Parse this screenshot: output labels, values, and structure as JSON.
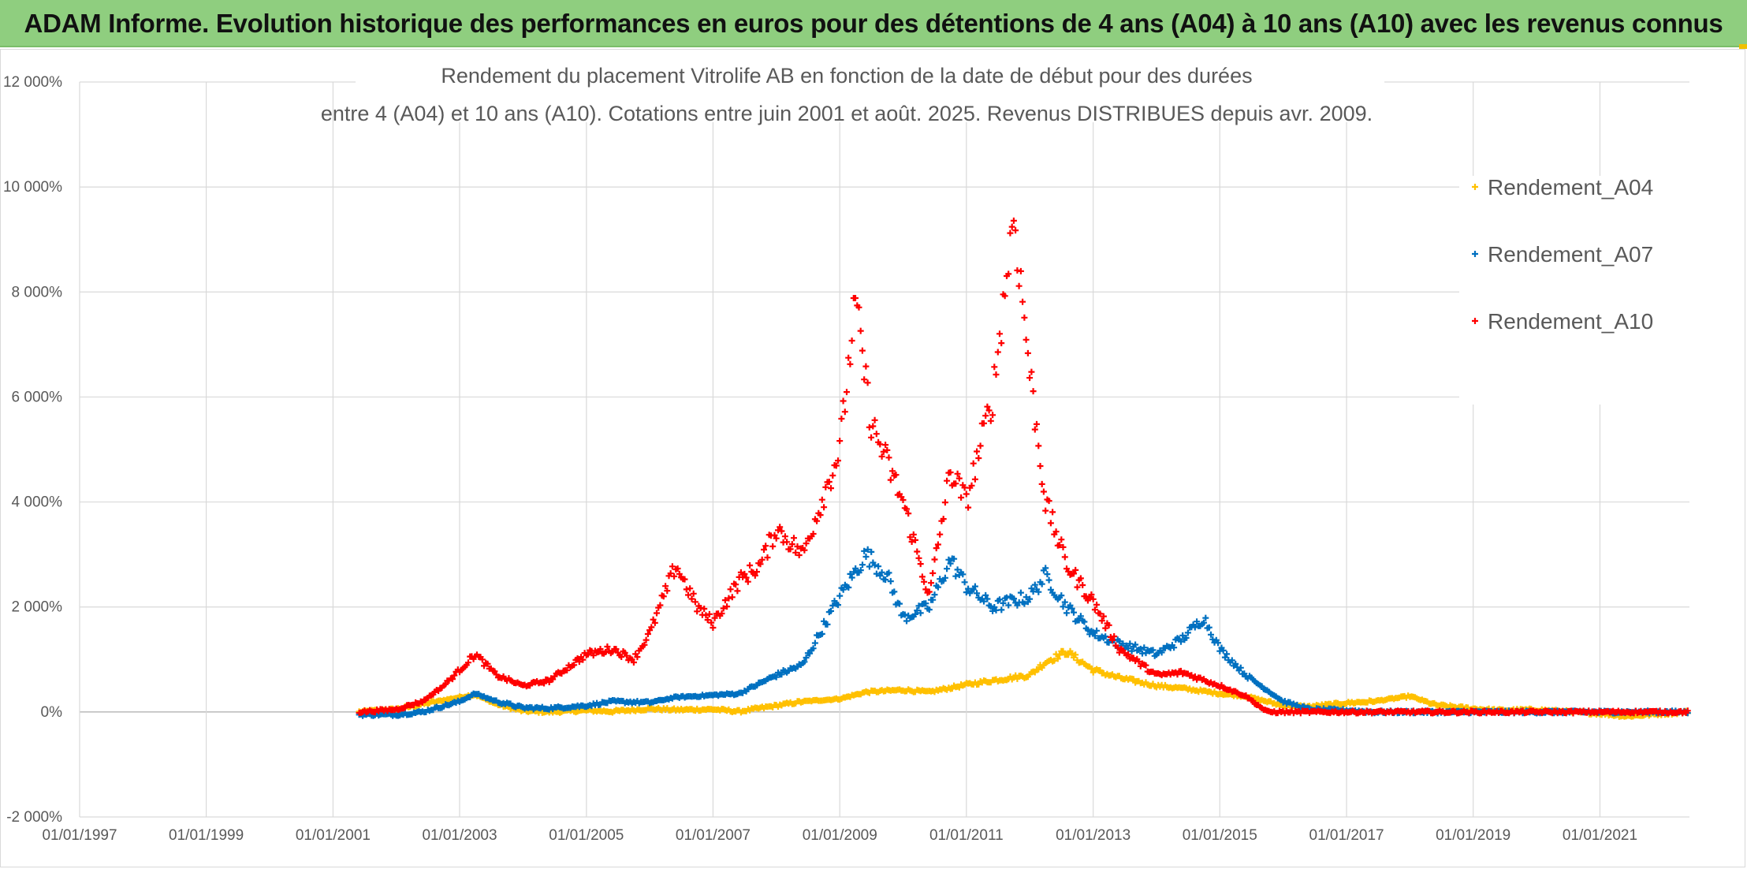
{
  "header": {
    "title": "ADAM Informe. Evolution historique des performances en euros pour des détentions de 4 ans (A04) à 10 ans (A10) avec les revenus connus distribués",
    "background": "#8fce7f"
  },
  "chart_data": {
    "type": "scatter",
    "title_lines": [
      "Rendement du placement Vitrolife AB en fonction de la date de début pour des durées",
      "entre 4 (A04) et 10 ans (A10). Cotations entre juin 2001 et août. 2025. Revenus DISTRIBUES depuis avr. 2009."
    ],
    "xlabel": "",
    "ylabel": "",
    "xlim": [
      "1997-01-01",
      "2022-06-01"
    ],
    "x_ticks": [
      "01/01/1997",
      "01/01/1999",
      "01/01/2001",
      "01/01/2003",
      "01/01/2005",
      "01/01/2007",
      "01/01/2009",
      "01/01/2011",
      "01/01/2013",
      "01/01/2015",
      "01/01/2017",
      "01/01/2019",
      "01/01/2021"
    ],
    "ylim": [
      -2000,
      12000
    ],
    "y_unit": "%",
    "y_ticks": [
      "-2 000%",
      "0%",
      "2 000%",
      "4 000%",
      "6 000%",
      "8 000%",
      "10 000%",
      "12 000%"
    ],
    "grid": true,
    "marker": "+",
    "legend_position": "top-right",
    "series": [
      {
        "name": "Rendement_A04",
        "color": "#ffc000",
        "points": [
          [
            "2001-06-01",
            0
          ],
          [
            "2002-01-01",
            50
          ],
          [
            "2002-06-01",
            150
          ],
          [
            "2003-01-01",
            280
          ],
          [
            "2003-04-01",
            330
          ],
          [
            "2003-08-01",
            150
          ],
          [
            "2004-01-01",
            20
          ],
          [
            "2004-06-01",
            0
          ],
          [
            "2005-01-01",
            30
          ],
          [
            "2005-06-01",
            10
          ],
          [
            "2006-01-01",
            60
          ],
          [
            "2006-06-01",
            40
          ],
          [
            "2007-01-01",
            50
          ],
          [
            "2007-06-01",
            10
          ],
          [
            "2008-01-01",
            120
          ],
          [
            "2008-06-01",
            200
          ],
          [
            "2009-01-01",
            250
          ],
          [
            "2009-06-01",
            380
          ],
          [
            "2010-01-01",
            420
          ],
          [
            "2010-06-01",
            380
          ],
          [
            "2011-01-01",
            520
          ],
          [
            "2011-06-01",
            600
          ],
          [
            "2012-01-01",
            700
          ],
          [
            "2012-04-01",
            950
          ],
          [
            "2012-08-01",
            1150
          ],
          [
            "2013-01-01",
            800
          ],
          [
            "2013-06-01",
            650
          ],
          [
            "2014-01-01",
            500
          ],
          [
            "2014-06-01",
            450
          ],
          [
            "2015-01-01",
            350
          ],
          [
            "2015-06-01",
            300
          ],
          [
            "2016-01-01",
            120
          ],
          [
            "2016-06-01",
            100
          ],
          [
            "2017-01-01",
            170
          ],
          [
            "2017-06-01",
            200
          ],
          [
            "2018-01-01",
            300
          ],
          [
            "2018-06-01",
            130
          ],
          [
            "2019-01-01",
            60
          ],
          [
            "2019-06-01",
            30
          ],
          [
            "2020-01-01",
            40
          ],
          [
            "2020-06-01",
            10
          ],
          [
            "2021-01-01",
            -30
          ],
          [
            "2021-06-01",
            -80
          ],
          [
            "2022-06-01",
            0
          ]
        ]
      },
      {
        "name": "Rendement_A07",
        "color": "#0070c0",
        "points": [
          [
            "2001-06-01",
            -50
          ],
          [
            "2002-01-01",
            -50
          ],
          [
            "2002-06-01",
            0
          ],
          [
            "2003-01-01",
            200
          ],
          [
            "2003-04-01",
            350
          ],
          [
            "2003-08-01",
            200
          ],
          [
            "2004-01-01",
            80
          ],
          [
            "2004-06-01",
            70
          ],
          [
            "2005-01-01",
            120
          ],
          [
            "2005-06-01",
            200
          ],
          [
            "2006-01-01",
            180
          ],
          [
            "2006-06-01",
            280
          ],
          [
            "2007-01-01",
            320
          ],
          [
            "2007-06-01",
            350
          ],
          [
            "2008-01-01",
            700
          ],
          [
            "2008-06-01",
            900
          ],
          [
            "2009-01-01",
            2200
          ],
          [
            "2009-06-01",
            3000
          ],
          [
            "2009-10-01",
            2600
          ],
          [
            "2010-01-01",
            1800
          ],
          [
            "2010-06-01",
            2000
          ],
          [
            "2010-10-01",
            2900
          ],
          [
            "2011-01-01",
            2400
          ],
          [
            "2011-06-01",
            2000
          ],
          [
            "2012-01-01",
            2200
          ],
          [
            "2012-04-01",
            2600
          ],
          [
            "2012-08-01",
            2000
          ],
          [
            "2013-01-01",
            1500
          ],
          [
            "2013-06-01",
            1300
          ],
          [
            "2014-01-01",
            1100
          ],
          [
            "2014-06-01",
            1400
          ],
          [
            "2014-10-01",
            1800
          ],
          [
            "2015-01-01",
            1200
          ],
          [
            "2015-06-01",
            700
          ],
          [
            "2016-01-01",
            200
          ],
          [
            "2016-06-01",
            50
          ],
          [
            "2017-01-01",
            30
          ],
          [
            "2017-06-01",
            0
          ],
          [
            "2018-01-01",
            0
          ],
          [
            "2022-06-01",
            0
          ]
        ]
      },
      {
        "name": "Rendement_A10",
        "color": "#ff0000",
        "points": [
          [
            "2001-06-01",
            0
          ],
          [
            "2002-01-01",
            50
          ],
          [
            "2002-06-01",
            200
          ],
          [
            "2002-10-01",
            500
          ],
          [
            "2003-01-01",
            800
          ],
          [
            "2003-04-01",
            1100
          ],
          [
            "2003-08-01",
            700
          ],
          [
            "2004-01-01",
            500
          ],
          [
            "2004-06-01",
            600
          ],
          [
            "2005-01-01",
            1100
          ],
          [
            "2005-06-01",
            1200
          ],
          [
            "2005-10-01",
            1000
          ],
          [
            "2006-01-01",
            1500
          ],
          [
            "2006-06-01",
            2800
          ],
          [
            "2006-10-01",
            2000
          ],
          [
            "2007-01-01",
            1700
          ],
          [
            "2007-06-01",
            2500
          ],
          [
            "2007-10-01",
            2800
          ],
          [
            "2008-01-01",
            3500
          ],
          [
            "2008-06-01",
            3000
          ],
          [
            "2009-01-01",
            5000
          ],
          [
            "2009-04-01",
            7800
          ],
          [
            "2009-07-01",
            5500
          ],
          [
            "2010-01-01",
            4000
          ],
          [
            "2010-06-01",
            2200
          ],
          [
            "2010-10-01",
            4600
          ],
          [
            "2011-01-01",
            4000
          ],
          [
            "2011-06-01",
            6000
          ],
          [
            "2011-10-01",
            9500
          ],
          [
            "2012-01-01",
            6500
          ],
          [
            "2012-04-01",
            4000
          ],
          [
            "2012-08-01",
            2800
          ],
          [
            "2013-01-01",
            2100
          ],
          [
            "2013-06-01",
            1200
          ],
          [
            "2014-01-01",
            700
          ],
          [
            "2014-06-01",
            750
          ],
          [
            "2015-01-01",
            500
          ],
          [
            "2015-06-01",
            300
          ],
          [
            "2015-10-01",
            0
          ],
          [
            "2016-06-01",
            0
          ],
          [
            "2022-06-01",
            0
          ]
        ]
      }
    ]
  }
}
